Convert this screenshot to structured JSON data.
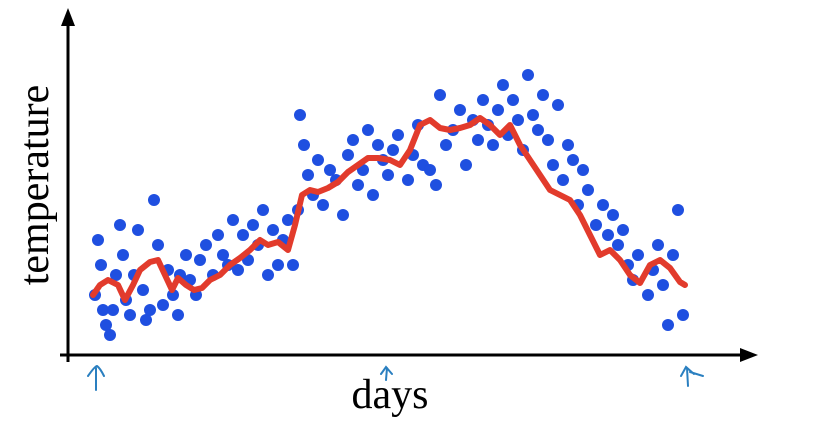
{
  "chart_data": {
    "type": "scatter",
    "ylabel": "temperature",
    "xlabel": "days",
    "xlim": [
      0,
      680
    ],
    "ylim": [
      0,
      340
    ],
    "series": [
      {
        "type": "scatter",
        "color": "#1f4fe0",
        "x": [
          27,
          30,
          33,
          35,
          38,
          42,
          45,
          48,
          52,
          55,
          58,
          62,
          66,
          70,
          75,
          78,
          82,
          86,
          90,
          95,
          100,
          105,
          110,
          112,
          118,
          122,
          128,
          132,
          138,
          145,
          150,
          155,
          160,
          165,
          170,
          175,
          180,
          185,
          190,
          195,
          200,
          205,
          210,
          215,
          220,
          225,
          230,
          232,
          236,
          240,
          245,
          250,
          255,
          262,
          268,
          275,
          280,
          285,
          290,
          295,
          300,
          305,
          310,
          315,
          320,
          325,
          330,
          340,
          345,
          350,
          355,
          362,
          368,
          372,
          378,
          385,
          392,
          398,
          405,
          410,
          415,
          420,
          425,
          430,
          435,
          440,
          445,
          450,
          455,
          460,
          465,
          470,
          475,
          480,
          485,
          490,
          495,
          500,
          505,
          510,
          515,
          520,
          528,
          535,
          540,
          545,
          550,
          555,
          560,
          565,
          570,
          580,
          585,
          590,
          595,
          600,
          605,
          610,
          615
        ],
        "values": [
          60,
          115,
          90,
          45,
          30,
          20,
          45,
          80,
          130,
          100,
          55,
          40,
          80,
          125,
          65,
          35,
          45,
          155,
          110,
          50,
          85,
          60,
          40,
          80,
          100,
          75,
          60,
          95,
          110,
          80,
          120,
          100,
          90,
          135,
          85,
          120,
          95,
          130,
          110,
          145,
          80,
          125,
          90,
          115,
          135,
          90,
          145,
          240,
          210,
          180,
          160,
          195,
          150,
          185,
          175,
          140,
          200,
          215,
          170,
          185,
          225,
          160,
          210,
          195,
          180,
          205,
          220,
          175,
          200,
          230,
          190,
          185,
          170,
          260,
          210,
          225,
          245,
          190,
          235,
          215,
          255,
          230,
          210,
          245,
          270,
          220,
          255,
          235,
          205,
          280,
          240,
          225,
          260,
          215,
          190,
          250,
          175,
          210,
          195,
          150,
          185,
          165,
          130,
          150,
          120,
          140,
          110,
          125,
          90,
          75,
          100,
          60,
          85,
          110,
          70,
          30,
          100,
          145,
          40
        ]
      },
      {
        "type": "line",
        "color": "#e23b2c",
        "x": [
          25,
          32,
          40,
          50,
          57,
          65,
          72,
          82,
          90,
          97,
          104,
          110,
          118,
          126,
          134,
          142,
          152,
          162,
          172,
          182,
          192,
          200,
          210,
          220,
          227,
          234,
          242,
          250,
          260,
          270,
          280,
          290,
          300,
          310,
          322,
          332,
          342,
          352,
          362,
          372,
          382,
          392,
          402,
          412,
          422,
          432,
          442,
          452,
          462,
          472,
          482,
          492,
          502,
          512,
          522,
          532,
          542,
          552,
          562,
          572,
          582,
          592,
          602,
          612,
          617
        ],
        "values": [
          60,
          70,
          75,
          70,
          55,
          70,
          85,
          93,
          95,
          80,
          65,
          77,
          70,
          65,
          67,
          75,
          80,
          90,
          97,
          105,
          115,
          110,
          113,
          105,
          130,
          160,
          165,
          163,
          167,
          173,
          183,
          190,
          197,
          197,
          195,
          190,
          205,
          230,
          235,
          227,
          225,
          227,
          230,
          237,
          230,
          220,
          230,
          210,
          195,
          180,
          165,
          160,
          155,
          140,
          120,
          100,
          105,
          95,
          80,
          72,
          90,
          95,
          87,
          73,
          70
        ]
      }
    ]
  }
}
